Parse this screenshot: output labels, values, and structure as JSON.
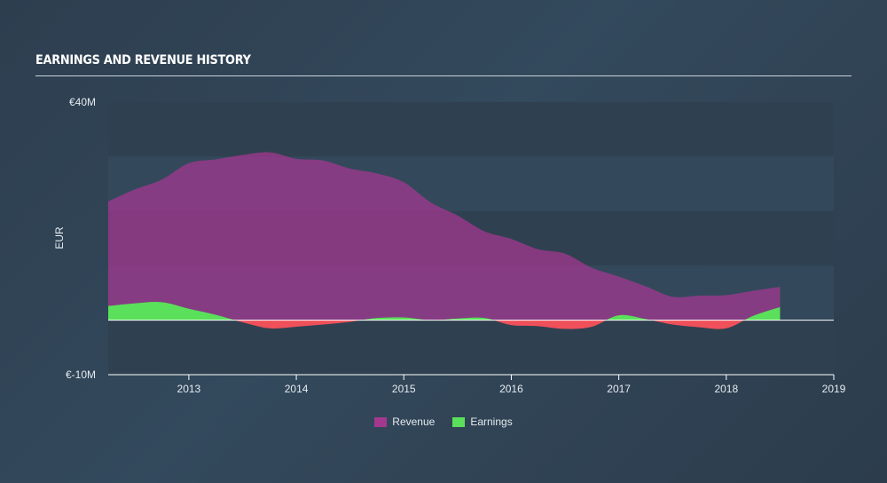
{
  "chart_data": {
    "type": "area",
    "title": "EARNINGS AND REVENUE HISTORY",
    "ylabel": "EUR",
    "ylim": [
      -10,
      40
    ],
    "y_ticks": [
      {
        "value": 40,
        "label": "€40M"
      },
      {
        "value": -10,
        "label": "€-10M"
      }
    ],
    "xlim": [
      2012.25,
      2019.0
    ],
    "x_ticks": [
      {
        "value": 2013,
        "label": "2013"
      },
      {
        "value": 2014,
        "label": "2014"
      },
      {
        "value": 2015,
        "label": "2015"
      },
      {
        "value": 2016,
        "label": "2016"
      },
      {
        "value": 2017,
        "label": "2017"
      },
      {
        "value": 2018,
        "label": "2018"
      },
      {
        "value": 2019,
        "label": "2019"
      }
    ],
    "series": [
      {
        "name": "Revenue",
        "color": "#a3388f",
        "points": [
          [
            2012.25,
            21.8
          ],
          [
            2012.5,
            24.0
          ],
          [
            2012.75,
            25.8
          ],
          [
            2013.0,
            28.8
          ],
          [
            2013.25,
            29.5
          ],
          [
            2013.5,
            30.3
          ],
          [
            2013.75,
            30.8
          ],
          [
            2014.0,
            29.6
          ],
          [
            2014.25,
            29.3
          ],
          [
            2014.5,
            27.8
          ],
          [
            2014.75,
            26.9
          ],
          [
            2015.0,
            25.3
          ],
          [
            2015.25,
            21.6
          ],
          [
            2015.5,
            19.2
          ],
          [
            2015.75,
            16.3
          ],
          [
            2016.0,
            14.9
          ],
          [
            2016.25,
            13.0
          ],
          [
            2016.5,
            12.2
          ],
          [
            2016.75,
            9.6
          ],
          [
            2017.0,
            8.0
          ],
          [
            2017.25,
            6.2
          ],
          [
            2017.5,
            4.3
          ],
          [
            2017.75,
            4.5
          ],
          [
            2018.0,
            4.6
          ],
          [
            2018.25,
            5.4
          ],
          [
            2018.5,
            6.1
          ]
        ]
      },
      {
        "name": "Earnings",
        "positive_color": "#5ae05a",
        "negative_color": "#f0505a",
        "points": [
          [
            2012.25,
            2.6
          ],
          [
            2012.5,
            3.1
          ],
          [
            2012.75,
            3.3
          ],
          [
            2013.0,
            2.1
          ],
          [
            2013.25,
            1.0
          ],
          [
            2013.5,
            -0.4
          ],
          [
            2013.75,
            -1.5
          ],
          [
            2014.0,
            -1.2
          ],
          [
            2014.25,
            -0.8
          ],
          [
            2014.5,
            -0.3
          ],
          [
            2014.75,
            0.4
          ],
          [
            2015.0,
            0.5
          ],
          [
            2015.25,
            0.0
          ],
          [
            2015.5,
            0.3
          ],
          [
            2015.75,
            0.4
          ],
          [
            2016.0,
            -0.9
          ],
          [
            2016.25,
            -1.1
          ],
          [
            2016.5,
            -1.6
          ],
          [
            2016.75,
            -1.2
          ],
          [
            2017.0,
            0.9
          ],
          [
            2017.25,
            0.2
          ],
          [
            2017.5,
            -0.8
          ],
          [
            2017.75,
            -1.3
          ],
          [
            2018.0,
            -1.5
          ],
          [
            2018.25,
            0.8
          ],
          [
            2018.5,
            2.4
          ]
        ]
      }
    ],
    "legend": [
      "Revenue",
      "Earnings"
    ],
    "legend_position": "bottom-center",
    "grid": "horizontal bands"
  }
}
